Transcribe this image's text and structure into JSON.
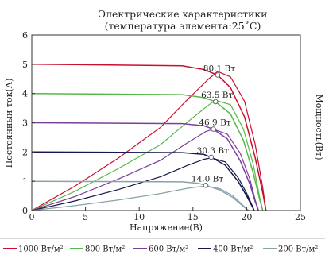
{
  "chart_data": {
    "type": "line",
    "title_lines": [
      "Электрические характеристики",
      "(температура элемента:25˚C)"
    ],
    "xlabel": "Напряжение(В)",
    "ylabel": "Постоянный ток(А)",
    "y2label": "Мощность(Вт)",
    "xlim": [
      0,
      25
    ],
    "ylim": [
      0,
      6
    ],
    "xticks": [
      0,
      5,
      10,
      15,
      20,
      25
    ],
    "yticks": [
      0,
      1,
      2,
      3,
      4,
      5,
      6
    ],
    "grid": false,
    "legend_position": "bottom",
    "series": [
      {
        "name": "1000 Вт/м²",
        "color": "#c8102e",
        "iv": [
          [
            0,
            5.0
          ],
          [
            14,
            4.95
          ],
          [
            16,
            4.82
          ],
          [
            17.3,
            4.63
          ],
          [
            18.5,
            4.2
          ],
          [
            19.8,
            3.2
          ],
          [
            20.8,
            1.8
          ],
          [
            21.5,
            0.6
          ],
          [
            21.8,
            0.0
          ]
        ],
        "pv": [
          [
            0,
            0
          ],
          [
            4,
            14
          ],
          [
            8,
            30
          ],
          [
            12,
            48
          ],
          [
            14.5,
            64
          ],
          [
            16.5,
            76
          ],
          [
            17.3,
            80.1
          ],
          [
            18.5,
            77
          ],
          [
            19.8,
            63
          ],
          [
            20.8,
            38
          ],
          [
            21.5,
            13
          ],
          [
            21.8,
            0
          ]
        ],
        "mpp": [
          17.3,
          4.63
        ],
        "mpp_label": "80.1 Вт"
      },
      {
        "name": "800 Вт/м²",
        "color": "#56b848",
        "iv": [
          [
            0,
            4.0
          ],
          [
            14,
            3.96
          ],
          [
            16,
            3.86
          ],
          [
            17.1,
            3.72
          ],
          [
            18.5,
            3.3
          ],
          [
            19.7,
            2.4
          ],
          [
            20.6,
            1.3
          ],
          [
            21.2,
            0.4
          ],
          [
            21.5,
            0.0
          ]
        ],
        "pv": [
          [
            0,
            0
          ],
          [
            4,
            11
          ],
          [
            8,
            24
          ],
          [
            12,
            38
          ],
          [
            14.5,
            51
          ],
          [
            16.5,
            61
          ],
          [
            17.1,
            63.5
          ],
          [
            18.5,
            61
          ],
          [
            19.7,
            47
          ],
          [
            20.6,
            27
          ],
          [
            21.2,
            8
          ],
          [
            21.5,
            0
          ]
        ],
        "mpp": [
          17.1,
          3.72
        ],
        "mpp_label": "63.5 Вт"
      },
      {
        "name": "600 Вт/м²",
        "color": "#7b3f98",
        "iv": [
          [
            0,
            3.0
          ],
          [
            14,
            2.97
          ],
          [
            16,
            2.9
          ],
          [
            16.9,
            2.78
          ],
          [
            18.2,
            2.45
          ],
          [
            19.4,
            1.7
          ],
          [
            20.3,
            0.9
          ],
          [
            20.8,
            0.3
          ],
          [
            21.1,
            0.0
          ]
        ],
        "pv": [
          [
            0,
            0
          ],
          [
            4,
            8
          ],
          [
            8,
            18
          ],
          [
            12,
            29
          ],
          [
            14.5,
            39
          ],
          [
            16.2,
            45.5
          ],
          [
            16.9,
            46.9
          ],
          [
            18.2,
            44
          ],
          [
            19.4,
            33
          ],
          [
            20.3,
            18
          ],
          [
            20.8,
            6
          ],
          [
            21.1,
            0
          ]
        ],
        "mpp": [
          16.9,
          2.78
        ],
        "mpp_label": "46.9 Вт"
      },
      {
        "name": "400 Вт/м²",
        "color": "#14174a",
        "iv": [
          [
            0,
            2.0
          ],
          [
            14,
            1.98
          ],
          [
            16,
            1.92
          ],
          [
            16.7,
            1.82
          ],
          [
            18,
            1.55
          ],
          [
            19.2,
            1.0
          ],
          [
            20,
            0.5
          ],
          [
            20.5,
            0.15
          ],
          [
            20.7,
            0.0
          ]
        ],
        "pv": [
          [
            0,
            0
          ],
          [
            4,
            5.5
          ],
          [
            8,
            12
          ],
          [
            12,
            19.5
          ],
          [
            14.5,
            26
          ],
          [
            16,
            29.5
          ],
          [
            16.7,
            30.3
          ],
          [
            18,
            28
          ],
          [
            19.2,
            19
          ],
          [
            20,
            10
          ],
          [
            20.5,
            3
          ],
          [
            20.7,
            0
          ]
        ],
        "mpp": [
          16.7,
          1.82
        ],
        "mpp_label": "30.3 Вт"
      },
      {
        "name": "200 Вт/м²",
        "color": "#8aa2a8",
        "iv": [
          [
            0,
            1.0
          ],
          [
            14,
            0.98
          ],
          [
            15.5,
            0.93
          ],
          [
            16.2,
            0.86
          ],
          [
            17.5,
            0.7
          ],
          [
            18.7,
            0.45
          ],
          [
            19.5,
            0.2
          ],
          [
            20,
            0.05
          ],
          [
            20.2,
            0.0
          ]
        ],
        "pv": [
          [
            0,
            0
          ],
          [
            4,
            2.8
          ],
          [
            8,
            6
          ],
          [
            12,
            9.8
          ],
          [
            14.5,
            12.8
          ],
          [
            15.7,
            13.8
          ],
          [
            16.2,
            14.0
          ],
          [
            17.5,
            12.6
          ],
          [
            18.7,
            8.6
          ],
          [
            19.5,
            4
          ],
          [
            20,
            1
          ],
          [
            20.2,
            0
          ]
        ],
        "mpp": [
          16.2,
          0.86
        ],
        "mpp_label": "14.0 Вт"
      }
    ]
  }
}
